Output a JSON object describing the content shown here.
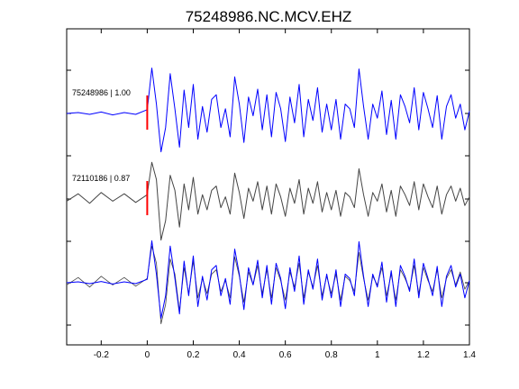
{
  "chart_data": {
    "type": "line",
    "title": "75248986.NC.MCV.EHZ",
    "xlabel": "",
    "ylabel": "",
    "xlim": [
      -0.35,
      1.4
    ],
    "x_ticks": [
      "-0.2",
      "0",
      "0.2",
      "0.4",
      "0.6",
      "0.8",
      "1",
      "1.2",
      "1.4"
    ],
    "x_tick_values": [
      -0.2,
      0,
      0.2,
      0.4,
      0.6,
      0.8,
      1.0,
      1.2,
      1.4
    ],
    "y_ticks_shown_without_labels": true,
    "grid": false,
    "pick_marker": {
      "x": 0.0,
      "color": "#ff0000"
    },
    "series": [
      {
        "name": "75248986 | 1.00",
        "panel": "top",
        "color": "#0000ff",
        "x": [
          -0.35,
          -0.3,
          -0.25,
          -0.2,
          -0.15,
          -0.1,
          -0.05,
          0.0,
          0.005,
          0.02,
          0.04,
          0.06,
          0.08,
          0.1,
          0.12,
          0.14,
          0.16,
          0.18,
          0.2,
          0.22,
          0.24,
          0.26,
          0.28,
          0.3,
          0.32,
          0.34,
          0.36,
          0.38,
          0.4,
          0.42,
          0.44,
          0.46,
          0.48,
          0.5,
          0.52,
          0.54,
          0.56,
          0.58,
          0.6,
          0.62,
          0.64,
          0.66,
          0.68,
          0.7,
          0.72,
          0.74,
          0.76,
          0.78,
          0.8,
          0.82,
          0.84,
          0.86,
          0.88,
          0.9,
          0.92,
          0.94,
          0.96,
          0.98,
          1.0,
          1.02,
          1.04,
          1.06,
          1.08,
          1.1,
          1.12,
          1.14,
          1.16,
          1.18,
          1.2,
          1.22,
          1.24,
          1.26,
          1.28,
          1.3,
          1.32,
          1.34,
          1.36,
          1.38,
          1.4
        ],
        "values": [
          0.0,
          0.02,
          -0.02,
          0.03,
          -0.03,
          0.02,
          -0.02,
          0.08,
          0.3,
          0.97,
          0.2,
          -0.82,
          -0.3,
          0.85,
          0.1,
          -0.72,
          0.5,
          -0.3,
          0.62,
          -0.55,
          0.15,
          -0.4,
          0.3,
          0.4,
          -0.3,
          0.1,
          -0.5,
          0.78,
          0.2,
          -0.62,
          0.35,
          -0.05,
          0.52,
          -0.35,
          0.4,
          -0.5,
          0.45,
          0.1,
          -0.6,
          0.35,
          -0.2,
          0.62,
          -0.5,
          0.3,
          -0.15,
          0.55,
          -0.4,
          0.2,
          -0.35,
          0.3,
          -0.55,
          0.2,
          0.1,
          -0.3,
          0.95,
          0.15,
          -0.55,
          0.2,
          -0.1,
          0.48,
          -0.45,
          0.28,
          -0.55,
          0.4,
          0.15,
          -0.2,
          0.55,
          -0.35,
          0.45,
          0.1,
          -0.3,
          0.38,
          -0.55,
          0.15,
          0.4,
          -0.1,
          0.2,
          -0.35,
          0.05
        ]
      },
      {
        "name": "72110186 | 0.87",
        "panel": "middle",
        "color": "#444444",
        "x": [
          -0.35,
          -0.3,
          -0.25,
          -0.2,
          -0.15,
          -0.1,
          -0.05,
          0.0,
          0.005,
          0.02,
          0.04,
          0.06,
          0.08,
          0.1,
          0.12,
          0.14,
          0.16,
          0.18,
          0.2,
          0.22,
          0.24,
          0.26,
          0.28,
          0.3,
          0.32,
          0.34,
          0.36,
          0.38,
          0.4,
          0.42,
          0.44,
          0.46,
          0.48,
          0.5,
          0.52,
          0.54,
          0.56,
          0.58,
          0.6,
          0.62,
          0.64,
          0.66,
          0.68,
          0.7,
          0.72,
          0.74,
          0.76,
          0.78,
          0.8,
          0.82,
          0.84,
          0.86,
          0.88,
          0.9,
          0.92,
          0.94,
          0.96,
          0.98,
          1.0,
          1.02,
          1.04,
          1.06,
          1.08,
          1.1,
          1.12,
          1.14,
          1.16,
          1.18,
          1.2,
          1.22,
          1.24,
          1.26,
          1.28,
          1.3,
          1.32,
          1.34,
          1.36,
          1.38,
          1.4
        ],
        "values": [
          -0.05,
          0.12,
          -0.1,
          0.15,
          -0.05,
          0.12,
          -0.08,
          0.1,
          0.3,
          0.85,
          0.45,
          -0.95,
          -0.5,
          0.55,
          0.2,
          -0.65,
          0.35,
          -0.25,
          0.5,
          -0.35,
          0.1,
          -0.25,
          0.2,
          0.3,
          -0.2,
          0.05,
          -0.35,
          0.6,
          0.15,
          -0.45,
          0.25,
          -0.05,
          0.4,
          -0.25,
          0.3,
          -0.35,
          0.35,
          0.05,
          -0.4,
          0.25,
          -0.1,
          0.45,
          -0.35,
          0.25,
          -0.1,
          0.4,
          -0.3,
          0.15,
          -0.25,
          0.2,
          -0.4,
          0.15,
          0.05,
          -0.2,
          0.7,
          0.1,
          -0.4,
          0.15,
          -0.05,
          0.35,
          -0.3,
          0.2,
          -0.4,
          0.3,
          0.1,
          -0.15,
          0.4,
          -0.25,
          0.35,
          0.05,
          -0.2,
          0.3,
          -0.35,
          0.1,
          0.3,
          -0.05,
          0.25,
          -0.15,
          0.05
        ]
      }
    ],
    "overlay_panel": "bottom panel overlays both traces"
  }
}
